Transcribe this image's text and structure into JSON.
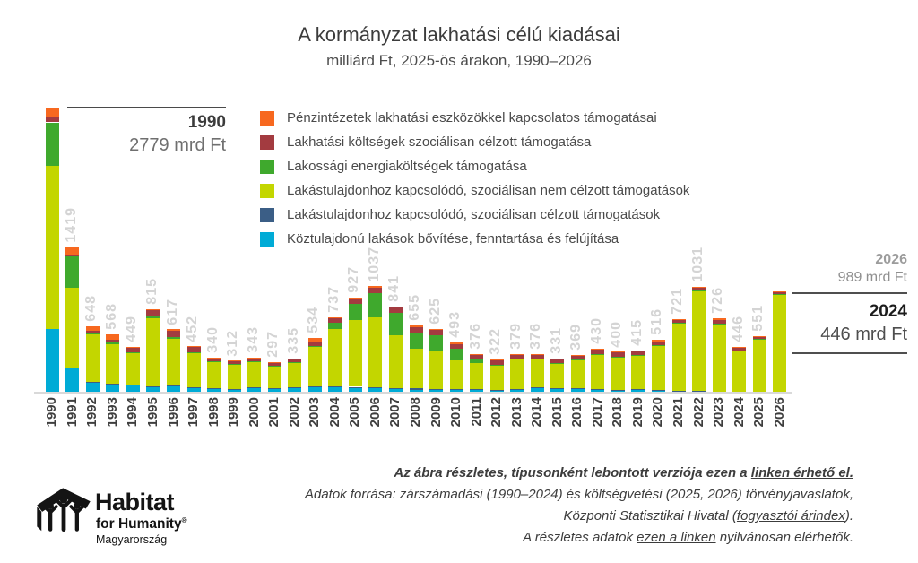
{
  "header": {
    "title": "A kormányzat lakhatási célú kiadásai",
    "subtitle": "milliárd Ft, 2025-ös árakon, 1990–2026"
  },
  "legend": [
    {
      "label": "Pénzintézetek lakhatási eszközökkel kapcsolatos támogatásai",
      "color": "#f7681f"
    },
    {
      "label": "Lakhatási költségek szociálisan célzott támogatása",
      "color": "#a33b40"
    },
    {
      "label": "Lakossági energiaköltségek támogatása",
      "color": "#3fa92d"
    },
    {
      "label": "Lakástulajdonhoz kapcsolódó, szociálisan nem célzott támogatások",
      "color": "#c3d600"
    },
    {
      "label": "Lakástulajdonhoz kapcsolódó, szociálisan célzott támogatások",
      "color": "#3b5e86"
    },
    {
      "label": "Köztulajdonú lakások bővítése, fenntartása és felújítása",
      "color": "#00abd6"
    }
  ],
  "chart_data": {
    "type": "bar",
    "stacked": true,
    "title": "A kormányzat lakhatási célú kiadásai",
    "subtitle": "milliárd Ft, 2025-ös árakon, 1990–2026",
    "unit": "mrd Ft",
    "ylim": [
      0,
      2900
    ],
    "grid": false,
    "categories": [
      "1990",
      "1991",
      "1992",
      "1993",
      "1994",
      "1995",
      "1996",
      "1997",
      "1998",
      "1999",
      "2000",
      "2001",
      "2002",
      "2003",
      "2004",
      "2005",
      "2006",
      "2007",
      "2008",
      "2009",
      "2010",
      "2011",
      "2012",
      "2013",
      "2014",
      "2015",
      "2016",
      "2017",
      "2018",
      "2019",
      "2020",
      "2021",
      "2022",
      "2023",
      "2024",
      "2025",
      "2026"
    ],
    "totals": [
      2779,
      1419,
      648,
      568,
      449,
      815,
      617,
      452,
      340,
      312,
      343,
      297,
      335,
      534,
      737,
      927,
      1037,
      841,
      655,
      625,
      493,
      376,
      322,
      379,
      376,
      331,
      369,
      430,
      400,
      415,
      516,
      721,
      1031,
      726,
      446,
      551,
      989
    ],
    "value_labels_hidden": [
      "1990",
      "2026"
    ],
    "series": [
      {
        "name": "Köztulajdonú lakások bővítése, fenntartása és felújítása",
        "color": "#00abd6",
        "values": [
          620,
          245,
          95,
          80,
          70,
          55,
          60,
          40,
          35,
          30,
          45,
          40,
          45,
          55,
          50,
          45,
          40,
          35,
          30,
          25,
          30,
          25,
          20,
          30,
          45,
          35,
          40,
          30,
          25,
          30,
          25,
          15,
          12,
          10,
          8,
          8,
          8
        ]
      },
      {
        "name": "Lakástulajdonhoz kapcsolódó, szociálisan célzott támogatások",
        "color": "#3b5e86",
        "values": [
          0,
          0,
          8,
          8,
          6,
          10,
          12,
          10,
          6,
          6,
          8,
          6,
          8,
          10,
          12,
          12,
          12,
          12,
          10,
          8,
          8,
          6,
          5,
          5,
          5,
          5,
          5,
          5,
          5,
          5,
          5,
          4,
          4,
          3,
          3,
          3,
          3
        ]
      },
      {
        "name": "Lakástulajdonhoz kapcsolódó, szociálisan nem célzott támogatások",
        "color": "#c3d600",
        "values": [
          1595,
          780,
          465,
          380,
          310,
          660,
          450,
          340,
          260,
          240,
          245,
          215,
          240,
          380,
          560,
          650,
          680,
          510,
          390,
          380,
          280,
          255,
          240,
          285,
          270,
          240,
          272,
          340,
          318,
          330,
          430,
          660,
          980,
          660,
          400,
          510,
          950
        ]
      },
      {
        "name": "Lakossági energiaköltségek támogatása",
        "color": "#3fa92d",
        "values": [
          420,
          300,
          20,
          20,
          8,
          25,
          20,
          5,
          4,
          6,
          5,
          4,
          4,
          10,
          60,
          160,
          240,
          220,
          160,
          150,
          110,
          35,
          8,
          10,
          8,
          5,
          4,
          4,
          3,
          3,
          3,
          3,
          3,
          3,
          2,
          2,
          2
        ]
      },
      {
        "name": "Lakhatási költségek szociálisan célzott támogatása",
        "color": "#a33b40",
        "values": [
          50,
          24,
          15,
          30,
          45,
          55,
          65,
          50,
          30,
          25,
          25,
          25,
          30,
          35,
          40,
          45,
          50,
          50,
          50,
          47,
          45,
          45,
          42,
          42,
          41,
          40,
          42,
          45,
          43,
          41,
          38,
          32,
          26,
          30,
          25,
          24,
          20
        ]
      },
      {
        "name": "Pénzintézetek lakhatási eszközökkel kapcsolatos támogatásai",
        "color": "#f7681f",
        "values": [
          94,
          70,
          45,
          50,
          10,
          10,
          10,
          7,
          5,
          5,
          15,
          7,
          8,
          44,
          15,
          15,
          15,
          14,
          15,
          15,
          20,
          10,
          7,
          7,
          7,
          6,
          6,
          6,
          6,
          6,
          15,
          7,
          6,
          20,
          8,
          4,
          6
        ]
      }
    ]
  },
  "annotations": {
    "a1990": {
      "year": "1990",
      "value": "2779 mrd Ft"
    },
    "a2026": {
      "year": "2026",
      "value": "989 mrd Ft"
    },
    "a2024": {
      "year": "2024",
      "value": "446 mrd Ft"
    }
  },
  "footer": {
    "line1_pre": "Az ábra részletes, típusonként lebontott verziója ezen a ",
    "line1_link": "linken érhető el.",
    "line2": "Adatok forrása: zárszámadási (1990–2024) és költségvetési (2025, 2026) törvényjavaslatok,",
    "line3_pre": "Központi Statisztikai Hivatal (",
    "line3_link": "fogyasztói árindex",
    "line3_post": ").",
    "line4_pre": "A részletes adatok ",
    "line4_link": "ezen a linken",
    "line4_post": " nyilvánosan elérhetők."
  },
  "logo": {
    "brand": "Habitat",
    "tagline": "for Humanity",
    "registered": "®",
    "country": "Magyarország"
  }
}
